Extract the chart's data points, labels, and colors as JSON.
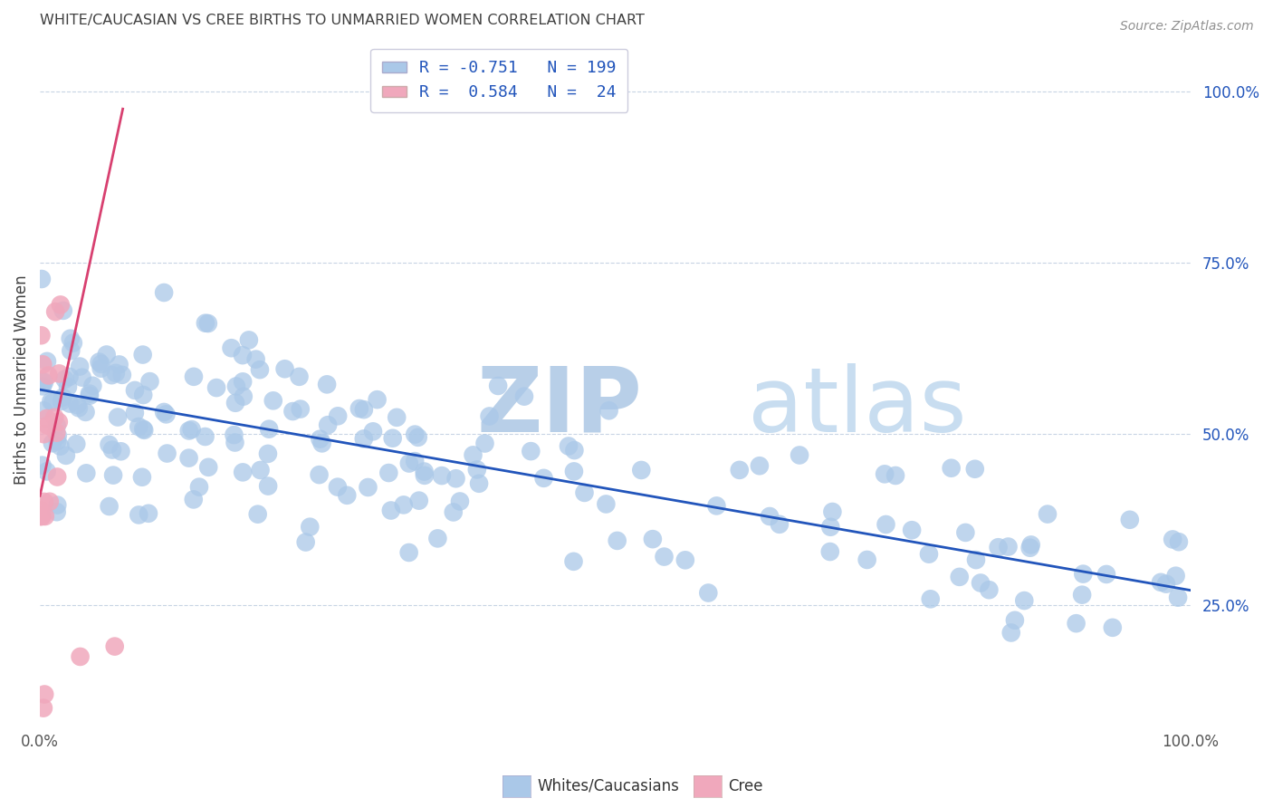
{
  "title": "WHITE/CAUCASIAN VS CREE BIRTHS TO UNMARRIED WOMEN CORRELATION CHART",
  "source": "Source: ZipAtlas.com",
  "ylabel": "Births to Unmarried Women",
  "ytick_labels": [
    "25.0%",
    "50.0%",
    "75.0%",
    "100.0%"
  ],
  "ytick_values": [
    0.25,
    0.5,
    0.75,
    1.0
  ],
  "xmin": 0.0,
  "xmax": 1.0,
  "ymin": 0.08,
  "ymax": 1.08,
  "blue_R": -0.751,
  "blue_N": 199,
  "pink_R": 0.584,
  "pink_N": 24,
  "blue_color": "#aac8e8",
  "pink_color": "#f0a8bc",
  "blue_line_color": "#2255bb",
  "pink_line_color": "#d84070",
  "legend_text_color": "#2255bb",
  "watermark_zip": "ZIP",
  "watermark_atlas": "atlas",
  "watermark_color_zip": "#b8cfe8",
  "watermark_color_atlas": "#c8ddf0",
  "background_color": "#ffffff",
  "grid_color": "#c8d4e4",
  "title_color": "#404040",
  "source_color": "#909090",
  "blue_trend_x0": 0.0,
  "blue_trend_x1": 1.0,
  "blue_trend_y0": 0.565,
  "blue_trend_y1": 0.272,
  "pink_trend_x0": 0.0,
  "pink_trend_x1": 0.072,
  "pink_trend_y0": 0.41,
  "pink_trend_y1": 0.975
}
